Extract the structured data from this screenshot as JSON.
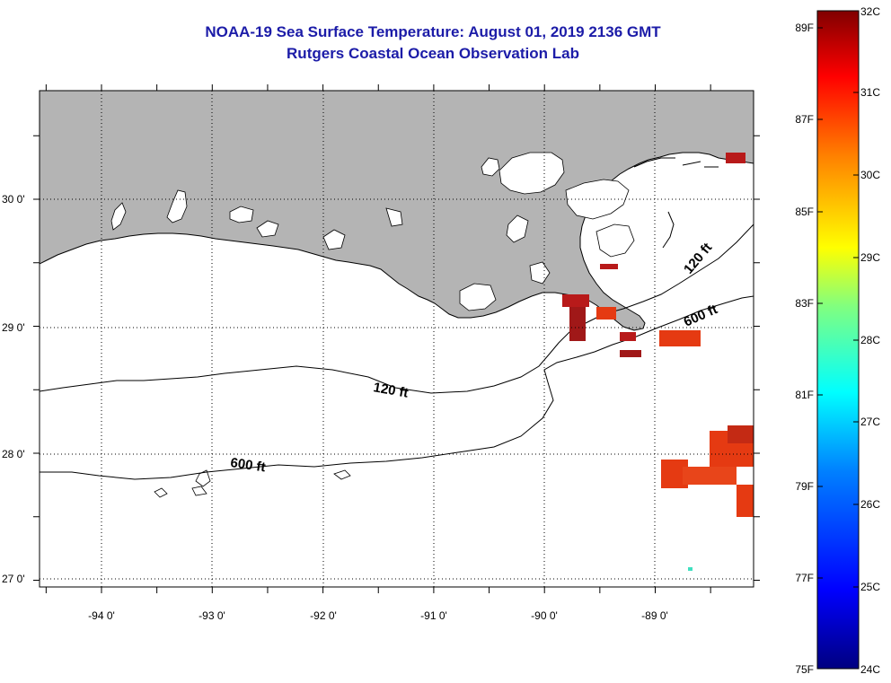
{
  "title": {
    "line1": "NOAA-19 Sea Surface Temperature:  August 01, 2019 2136 GMT",
    "line2": "Rutgers Coastal Ocean Observation Lab"
  },
  "map": {
    "lon_labels": [
      "-94 0'",
      "-93 0'",
      "-92 0'",
      "-91 0'",
      "-90 0'",
      "-89 0'"
    ],
    "lat_labels": [
      "30 0'",
      "29 0'",
      "28 0'",
      "27 0'"
    ],
    "contour_labels": {
      "c120_west": "120 ft",
      "c120_east": "120 ft",
      "c600_west": "600 ft",
      "c600_east": "600 ft"
    },
    "colors": {
      "land": "#b4b4b4",
      "lake": "#ffffff",
      "sst_hot": "#b81a1a",
      "sst_warm": "#e53a12"
    }
  },
  "colorbar": {
    "celsius_labels": [
      "32C",
      "31C",
      "30C",
      "29C",
      "28C",
      "27C",
      "26C",
      "25C",
      "24C"
    ],
    "fahrenheit_labels": [
      "89F",
      "87F",
      "85F",
      "83F",
      "81F",
      "79F",
      "77F",
      "75F"
    ],
    "stops": [
      "#000080",
      "#0000ff",
      "#0080ff",
      "#00ffff",
      "#80ff80",
      "#ffff00",
      "#ff8000",
      "#ff0000",
      "#800000"
    ]
  }
}
